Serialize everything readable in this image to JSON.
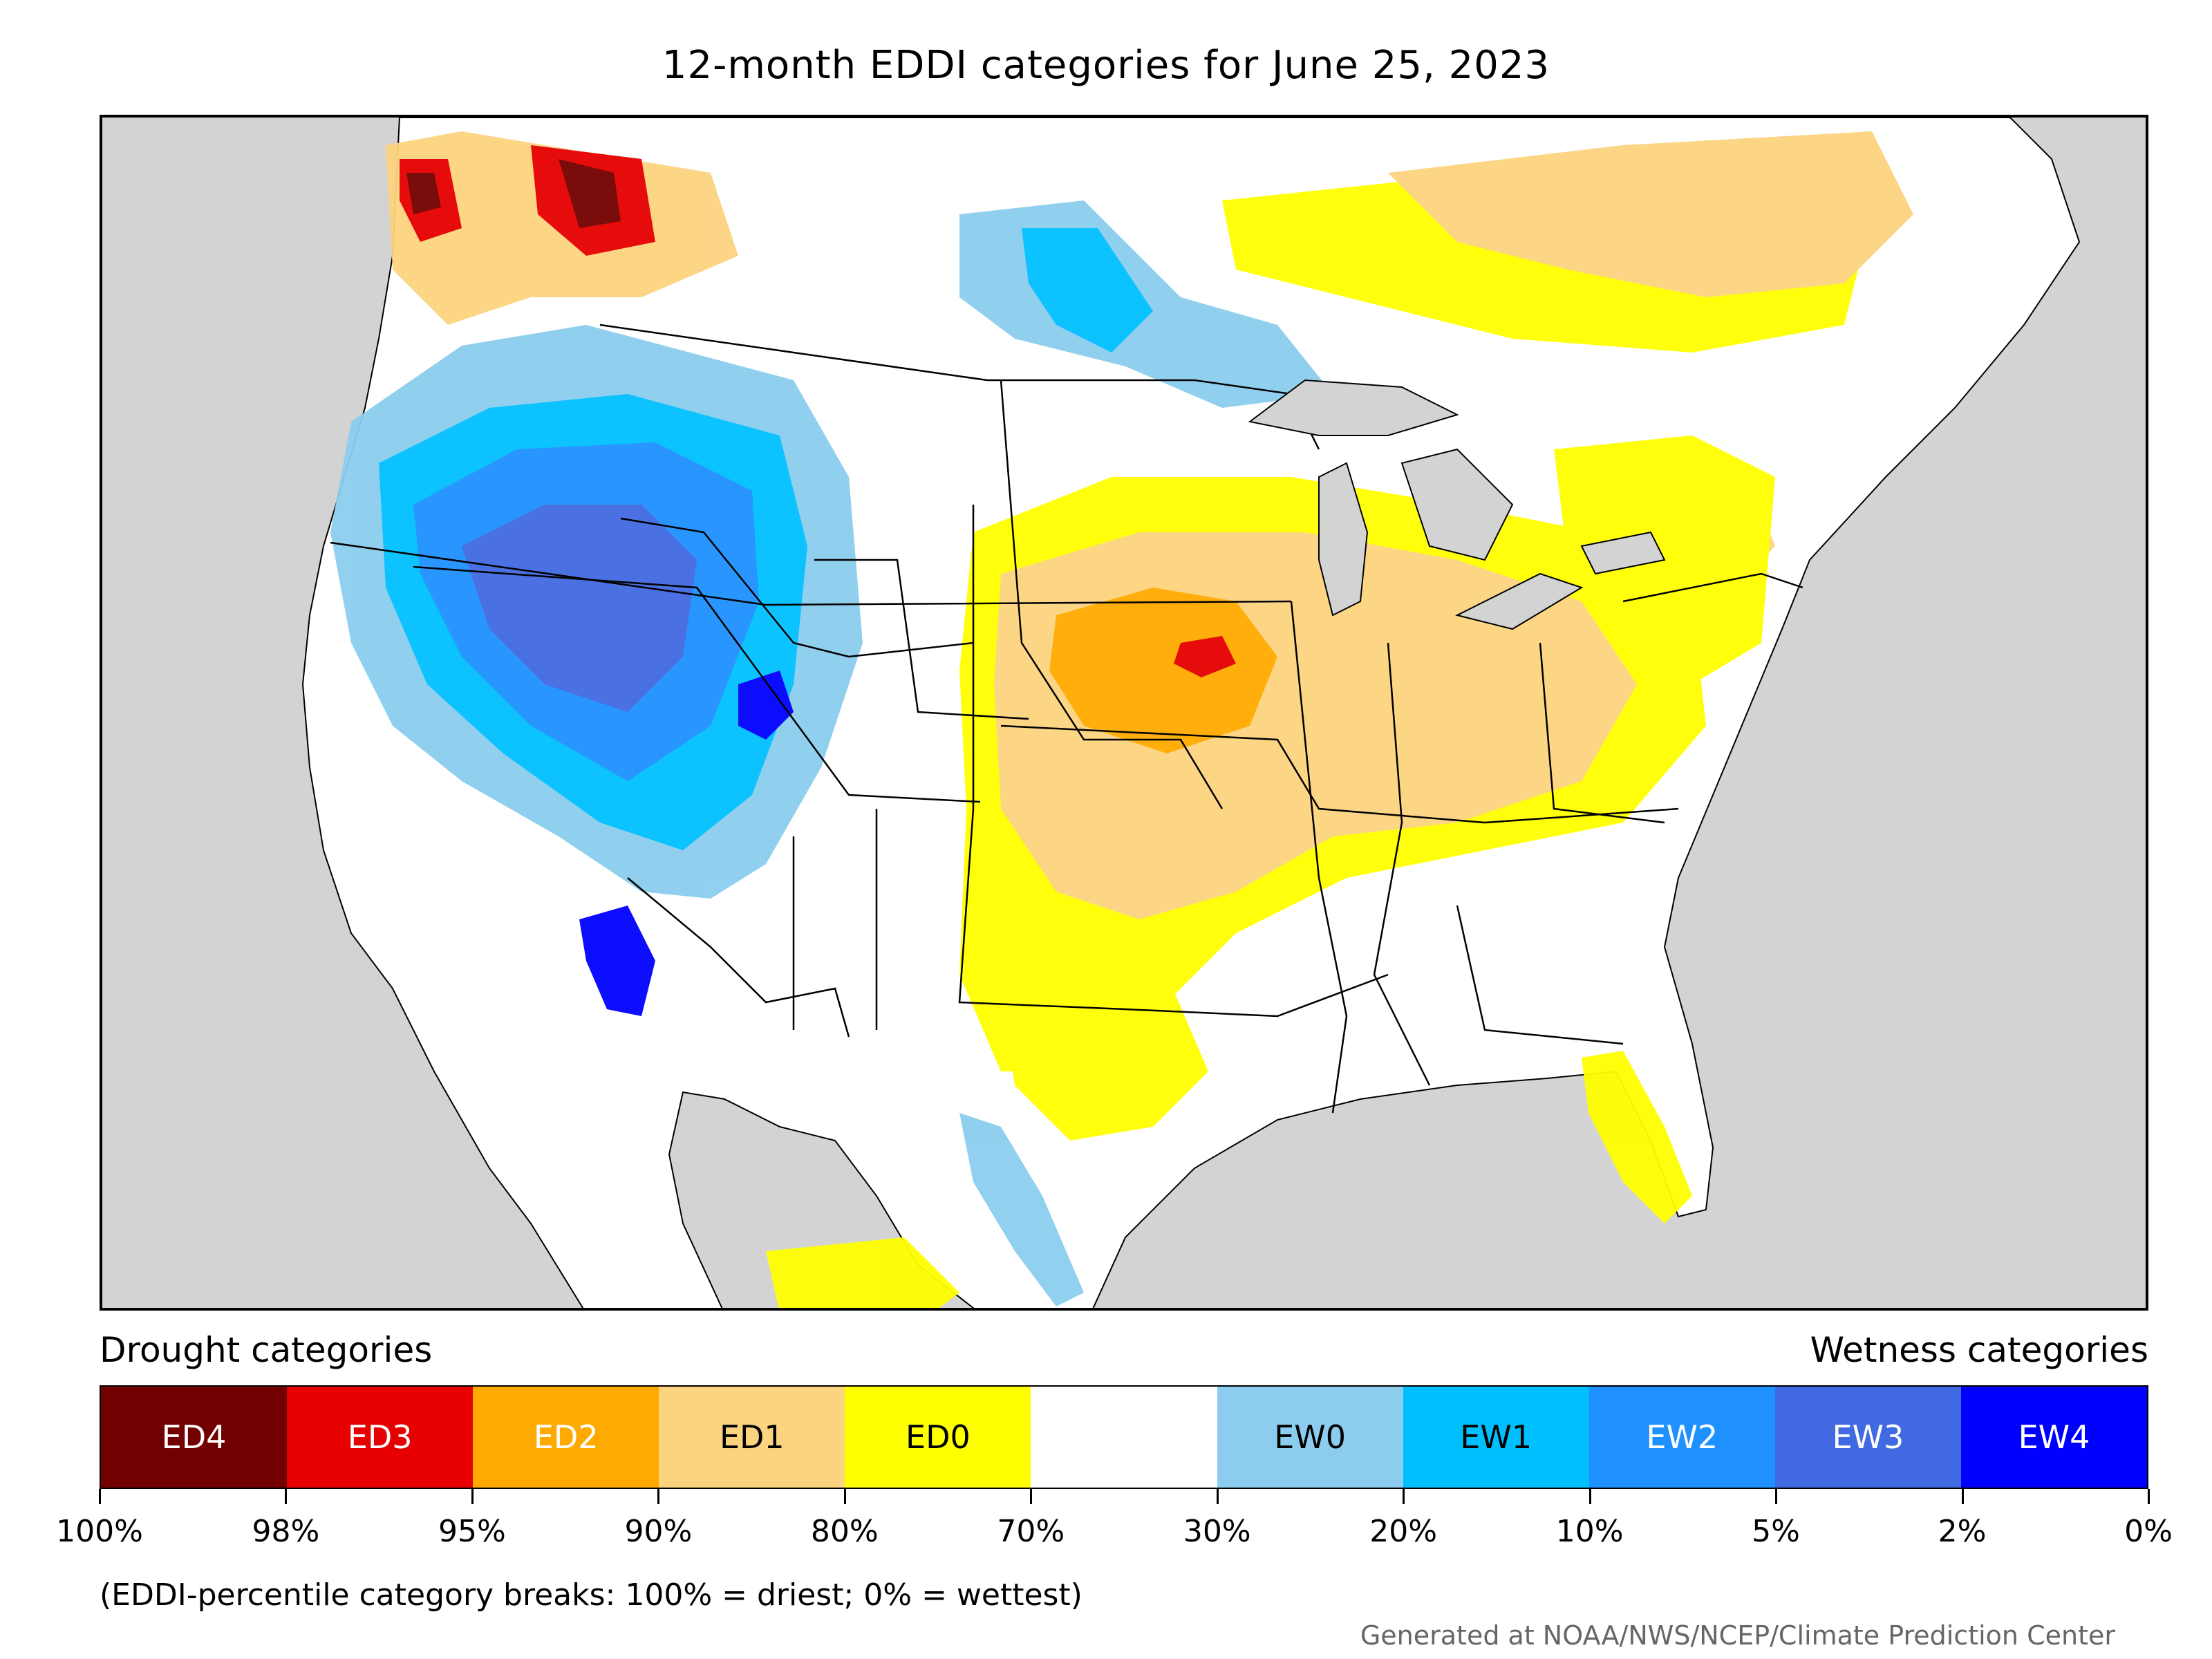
{
  "title": "12-month EDDI categories for June 25, 2023",
  "legend": {
    "left_heading": "Drought categories",
    "right_heading": "Wetness categories",
    "categories": [
      {
        "label": "ED4",
        "color": "#730000",
        "text_color": "#ffffff"
      },
      {
        "label": "ED3",
        "color": "#e60000",
        "text_color": "#ffffff"
      },
      {
        "label": "ED2",
        "color": "#ffaa00",
        "text_color": "#ffffff"
      },
      {
        "label": "ED1",
        "color": "#fcd37f",
        "text_color": "#000000"
      },
      {
        "label": "ED0",
        "color": "#ffff00",
        "text_color": "#000000"
      },
      {
        "label": "",
        "color": "#ffffff",
        "text_color": "#000000"
      },
      {
        "label": "EW0",
        "color": "#8ccdef",
        "text_color": "#000000"
      },
      {
        "label": "EW1",
        "color": "#00bfff",
        "text_color": "#000000"
      },
      {
        "label": "EW2",
        "color": "#1e90ff",
        "text_color": "#ffffff"
      },
      {
        "label": "EW3",
        "color": "#4169e1",
        "text_color": "#ffffff"
      },
      {
        "label": "EW4",
        "color": "#0000ff",
        "text_color": "#ffffff"
      }
    ],
    "tick_labels": [
      "100%",
      "98%",
      "95%",
      "90%",
      "80%",
      "70%",
      "30%",
      "20%",
      "10%",
      "5%",
      "2%",
      "0%"
    ]
  },
  "note": "(EDDI-percentile category breaks: 100% = driest; 0% = wettest)",
  "credit": "Generated at NOAA/NWS/NCEP/Climate Prediction Center",
  "colors": {
    "ocean": "#d3d3d3",
    "land": "#ffffff",
    "border": "#000000"
  }
}
